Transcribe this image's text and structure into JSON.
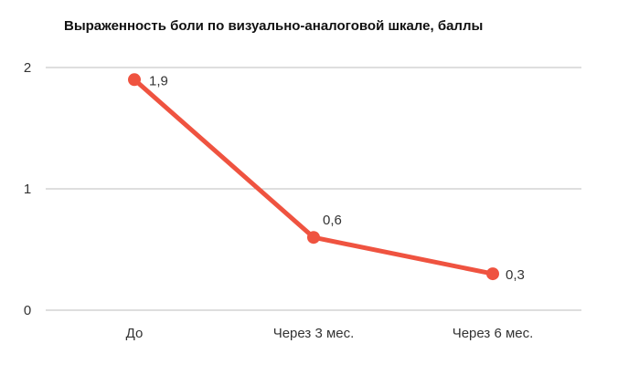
{
  "chart_data": {
    "type": "line",
    "title": "Выраженность боли по визуально-аналоговой шкале, баллы",
    "xlabel": "",
    "ylabel": "",
    "categories": [
      "До",
      "Через 3 мес.",
      "Через 6 мес."
    ],
    "series": [
      {
        "values": [
          1.9,
          0.6,
          0.3
        ],
        "data_labels": [
          "1,9",
          "0,6",
          "0,3"
        ],
        "color": "#ef5340"
      }
    ],
    "ylim": [
      0,
      2
    ],
    "yticks": [
      0,
      1,
      2
    ],
    "ytick_labels": [
      "0",
      "1",
      "2"
    ],
    "grid": true
  }
}
